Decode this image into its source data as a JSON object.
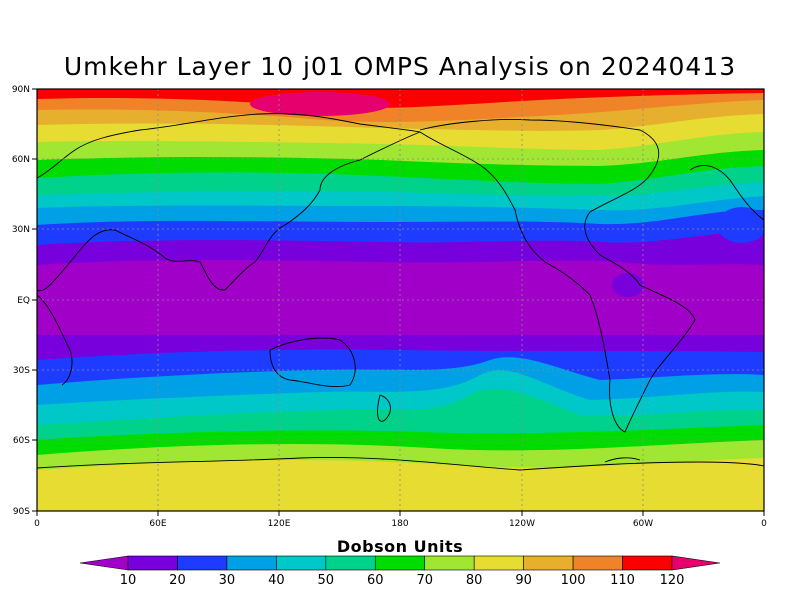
{
  "title": "Umkehr Layer 10 j01 OMPS Analysis on 20240413",
  "colorbar": {
    "title": "Dobson Units",
    "labels": [
      "10",
      "20",
      "30",
      "40",
      "50",
      "60",
      "70",
      "80",
      "90",
      "100",
      "110",
      "120"
    ],
    "colors": [
      "#a000c8",
      "#7800dc",
      "#1e3cff",
      "#00a0e6",
      "#00c8c8",
      "#00d28c",
      "#00dc00",
      "#a0e632",
      "#e6dc32",
      "#e6af2d",
      "#f08228",
      "#fa0000",
      "#e6006e"
    ]
  },
  "axes": {
    "y_labels": [
      "90N",
      "60N",
      "30N",
      "EQ",
      "30S",
      "60S",
      "90S"
    ],
    "x_labels": [
      "0",
      "60E",
      "120E",
      "180",
      "120W",
      "60W",
      "0"
    ]
  },
  "chart_data": {
    "type": "heatmap",
    "title": "Umkehr Layer 10 j01 OMPS Analysis on 20240413",
    "colorbar_label": "Dobson Units",
    "levels": [
      10,
      20,
      30,
      40,
      50,
      60,
      70,
      80,
      90,
      100,
      110,
      120
    ],
    "x_range": [
      "0",
      "0"
    ],
    "y_range": [
      "90S",
      "90N"
    ],
    "zonal_pattern": [
      {
        "lat": "90N",
        "value": 120
      },
      {
        "lat": "80N",
        "value": 110
      },
      {
        "lat": "70N",
        "value": 90
      },
      {
        "lat": "60N",
        "value": 80
      },
      {
        "lat": "50N",
        "value": 70
      },
      {
        "lat": "40N",
        "value": 50
      },
      {
        "lat": "30N",
        "value": 30
      },
      {
        "lat": "20N",
        "value": 20
      },
      {
        "lat": "EQ",
        "value": 10
      },
      {
        "lat": "20S",
        "value": 10
      },
      {
        "lat": "30S",
        "value": 20
      },
      {
        "lat": "40S",
        "value": 30
      },
      {
        "lat": "50S",
        "value": 50
      },
      {
        "lat": "60S",
        "value": 60
      },
      {
        "lat": "70S",
        "value": 80
      },
      {
        "lat": "90S",
        "value": 90
      }
    ]
  }
}
